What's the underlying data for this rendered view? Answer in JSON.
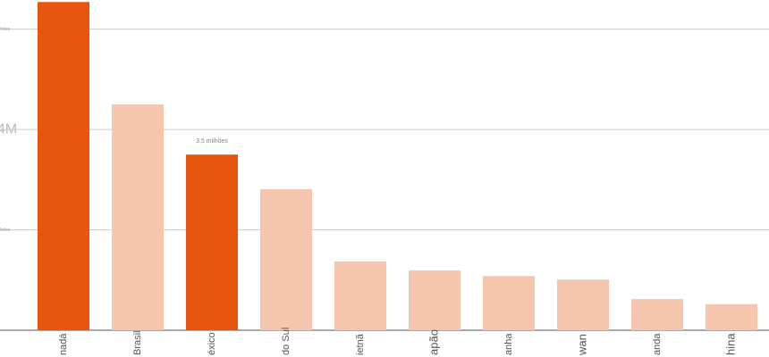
{
  "chart_data": {
    "type": "bar",
    "categories": [
      "nadá",
      "Brasil",
      "éxico",
      "do Sul",
      "ietnã",
      "apão",
      "anha",
      "wan",
      "anda",
      "hina"
    ],
    "values": [
      6.54,
      4.5,
      3.5,
      2.81,
      1.37,
      1.19,
      1.08,
      1.01,
      0.62,
      0.52
    ],
    "value_labels": [
      null,
      null,
      "3,5 milhões",
      null,
      null,
      null,
      null,
      null,
      null,
      null
    ],
    "colors": [
      "#e8550f",
      "#f5c5ad",
      "#e8550f",
      "#f5c5ad",
      "#f5c5ad",
      "#f5c5ad",
      "#f5c5ad",
      "#f5c5ad",
      "#f5c5ad",
      "#f5c5ad"
    ],
    "ylim": [
      0,
      6.58
    ],
    "yticks": [
      {
        "value": 2,
        "label": "milhões"
      },
      {
        "value": 4,
        "label": "4M"
      },
      {
        "value": 6,
        "label": "milhões"
      }
    ],
    "grid": true
  }
}
